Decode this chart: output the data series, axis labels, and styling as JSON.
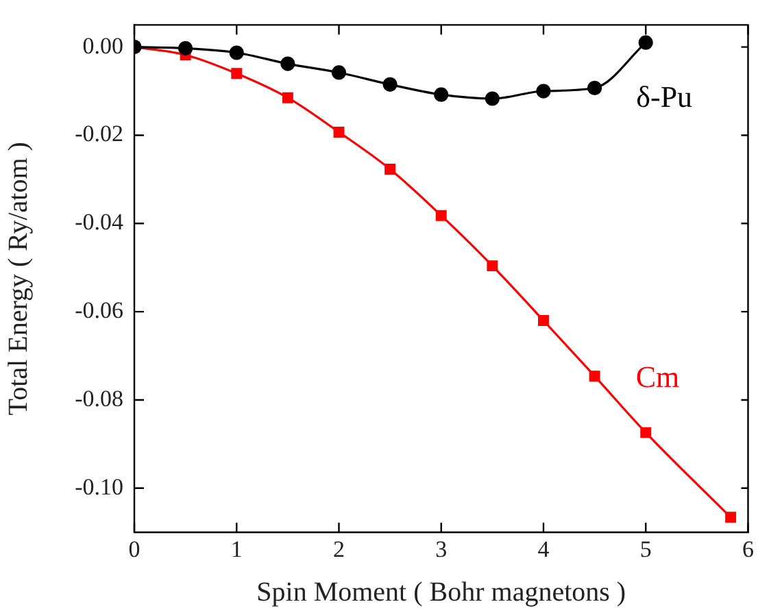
{
  "chart_data": {
    "type": "line",
    "xlabel": "Spin Moment ( Bohr magnetons )",
    "ylabel": "Total Energy ( Ry/atom )",
    "xlim": [
      0,
      6
    ],
    "xticks": [
      0,
      1,
      2,
      3,
      4,
      5,
      6
    ],
    "ylim": [
      -0.11,
      0.005
    ],
    "yticks": [
      {
        "value": 0,
        "label": "0.00"
      },
      {
        "value": -0.02,
        "label": "-0.02"
      },
      {
        "value": -0.04,
        "label": "-0.04"
      },
      {
        "value": -0.06,
        "label": "-0.06"
      },
      {
        "value": -0.08,
        "label": "-0.08"
      },
      {
        "value": -0.1,
        "label": "-0.10"
      }
    ],
    "grid": false,
    "legend": false,
    "series": [
      {
        "name": "δ-Pu",
        "color": "#000000",
        "marker": "circle",
        "x": [
          0,
          0.5,
          1,
          1.5,
          2,
          2.5,
          3,
          3.5,
          4,
          4.5,
          5
        ],
        "values": [
          0,
          -0.0003,
          -0.0013,
          -0.0038,
          -0.0058,
          -0.0085,
          -0.0108,
          -0.0117,
          -0.01,
          -0.0093,
          0.001
        ]
      },
      {
        "name": "Cm",
        "color": "#ff0000",
        "marker": "square",
        "x": [
          0,
          0.5,
          1,
          1.5,
          2,
          2.5,
          3,
          3.5,
          4,
          4.5,
          5,
          5.83
        ],
        "values": [
          0,
          -0.0018,
          -0.006,
          -0.0115,
          -0.0193,
          -0.0277,
          -0.0382,
          -0.0496,
          -0.062,
          -0.0746,
          -0.0874,
          -0.1066
        ]
      }
    ]
  }
}
